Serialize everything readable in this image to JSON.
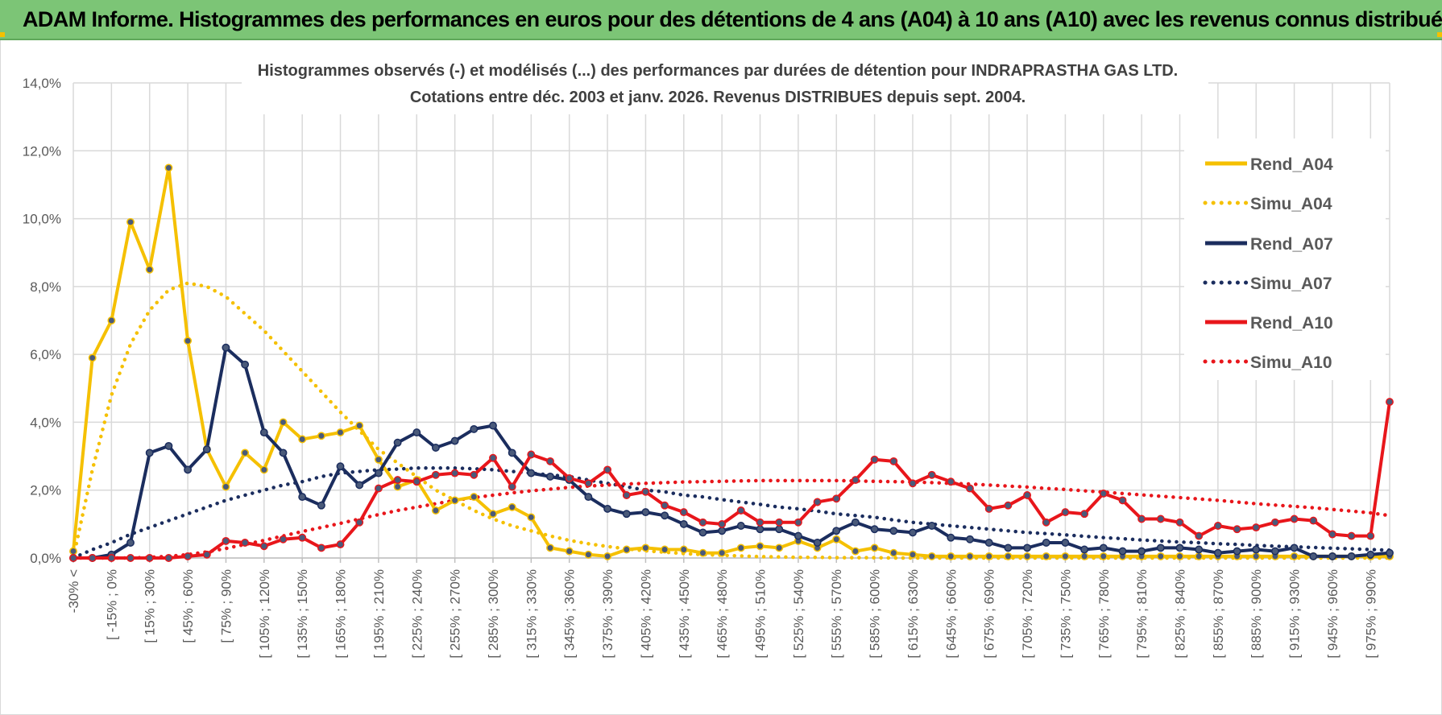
{
  "header": {
    "title": "ADAM Informe. Histogrammes des performances en euros pour des détentions de 4 ans (A04) à 10 ans (A10) avec les revenus connus distribués"
  },
  "colors": {
    "banner_bg": "#7cc576",
    "rend_a04": "#f5c000",
    "simu_a04": "#f5c000",
    "rend_a07": "#1b2d5e",
    "simu_a07": "#1b2d5e",
    "rend_a10": "#e8161b",
    "simu_a10": "#e8161b",
    "grid": "#d9d9d9"
  },
  "chart_data": {
    "type": "line",
    "title": "Histogrammes observés (-) et modélisés (...) des performances par durées de détention pour INDRAPRASTHA GAS LTD.",
    "subtitle": "Cotations entre déc. 2003 et janv. 2026.  Revenus DISTRIBUES depuis sept. 2004.",
    "xlabel": "",
    "ylabel": "",
    "ylim": [
      0,
      14
    ],
    "y_ticks": [
      "0,0%",
      "2,0%",
      "4,0%",
      "6,0%",
      "8,0%",
      "10,0%",
      "12,0%",
      "14,0%"
    ],
    "grid": true,
    "legend_position": "right",
    "x_tick_labels": [
      "-30% <",
      "[ -15% ; 0%",
      "[ 15% ; 30%",
      "[ 45% ; 60%",
      "[ 75% ; 90%",
      "[ 105% ; 120%",
      "[ 135% ; 150%",
      "[ 165% ; 180%",
      "[ 195% ; 210%",
      "[ 225% ; 240%",
      "[ 255% ; 270%",
      "[ 285% ; 300%",
      "[ 315% ; 330%",
      "[ 345% ; 360%",
      "[ 375% ; 390%",
      "[ 405% ; 420%",
      "[ 435% ; 450%",
      "[ 465% ; 480%",
      "[ 495% ; 510%",
      "[ 525% ; 540%",
      "[ 555% ; 570%",
      "[ 585% ; 600%",
      "[ 615% ; 630%",
      "[ 645% ; 660%",
      "[ 675% ; 690%",
      "[ 705% ; 720%",
      "[ 735% ; 750%",
      "[ 765% ; 780%",
      "[ 795% ; 810%",
      "[ 825% ; 840%",
      "[ 855% ; 870%",
      "[ 885% ; 900%",
      "[ 915% ; 930%",
      "[ 945% ; 960%",
      "[ 975% ; 990%"
    ],
    "n_points": 70,
    "series": [
      {
        "name": "Rend_A04",
        "style": "solid",
        "markers": true,
        "color_key": "rend_a04",
        "values": [
          0.2,
          5.9,
          7.0,
          9.9,
          8.5,
          11.5,
          6.4,
          3.2,
          2.1,
          3.1,
          2.6,
          4.0,
          3.5,
          3.6,
          3.7,
          3.9,
          2.9,
          2.1,
          2.3,
          1.4,
          1.7,
          1.8,
          1.3,
          1.5,
          1.2,
          0.3,
          0.2,
          0.1,
          0.05,
          0.25,
          0.3,
          0.25,
          0.25,
          0.15,
          0.15,
          0.3,
          0.35,
          0.3,
          0.5,
          0.3,
          0.55,
          0.2,
          0.3,
          0.15,
          0.1,
          0.05,
          0.05,
          0.05,
          0.05,
          0.05,
          0.05,
          0.05,
          0.05,
          0.05,
          0.05,
          0.05,
          0.05,
          0.05,
          0.05,
          0.05,
          0.05,
          0.05,
          0.05,
          0.05,
          0.05,
          0.05,
          0.05,
          0.05,
          0.05,
          0.05
        ]
      },
      {
        "name": "Simu_A04",
        "style": "dotted",
        "markers": false,
        "color_key": "simu_a04",
        "values": [
          0.0,
          2.6,
          4.8,
          6.3,
          7.3,
          7.9,
          8.1,
          8.0,
          7.7,
          7.2,
          6.7,
          6.1,
          5.5,
          4.9,
          4.3,
          3.75,
          3.2,
          2.8,
          2.4,
          2.0,
          1.7,
          1.4,
          1.15,
          0.95,
          0.8,
          0.65,
          0.52,
          0.42,
          0.34,
          0.27,
          0.21,
          0.17,
          0.13,
          0.1,
          0.08,
          0.06,
          0.04,
          0.03,
          0.02,
          0.02,
          0.01,
          0.01,
          0.01,
          0.0,
          0.0,
          0.0,
          0.0,
          0.0,
          0.0,
          0.0,
          0.0,
          0.0,
          0.0,
          0.0,
          0.0,
          0.0,
          0.0,
          0.0,
          0.0,
          0.0,
          0.0,
          0.0,
          0.0,
          0.0,
          0.0,
          0.0,
          0.0,
          0.0,
          0.0,
          0.0
        ]
      },
      {
        "name": "Rend_A07",
        "style": "solid",
        "markers": true,
        "color_key": "rend_a07",
        "values": [
          0.0,
          0.0,
          0.1,
          0.45,
          3.1,
          3.3,
          2.6,
          3.2,
          6.2,
          5.7,
          3.7,
          3.1,
          1.8,
          1.55,
          2.7,
          2.15,
          2.5,
          3.4,
          3.7,
          3.25,
          3.45,
          3.8,
          3.9,
          3.1,
          2.5,
          2.4,
          2.3,
          1.8,
          1.45,
          1.3,
          1.35,
          1.25,
          1.0,
          0.75,
          0.8,
          0.95,
          0.85,
          0.85,
          0.65,
          0.45,
          0.8,
          1.05,
          0.85,
          0.8,
          0.75,
          0.95,
          0.6,
          0.55,
          0.45,
          0.3,
          0.3,
          0.45,
          0.45,
          0.25,
          0.3,
          0.2,
          0.2,
          0.3,
          0.3,
          0.25,
          0.15,
          0.2,
          0.25,
          0.2,
          0.3,
          0.05,
          0.05,
          0.05,
          0.1,
          0.15
        ]
      },
      {
        "name": "Simu_A07",
        "style": "dotted",
        "markers": false,
        "color_key": "simu_a07",
        "values": [
          0.0,
          0.25,
          0.45,
          0.7,
          0.9,
          1.1,
          1.3,
          1.5,
          1.7,
          1.85,
          2.0,
          2.15,
          2.25,
          2.4,
          2.5,
          2.55,
          2.6,
          2.62,
          2.65,
          2.65,
          2.65,
          2.63,
          2.6,
          2.55,
          2.5,
          2.45,
          2.4,
          2.3,
          2.2,
          2.1,
          2.0,
          1.95,
          1.85,
          1.8,
          1.72,
          1.65,
          1.58,
          1.5,
          1.45,
          1.38,
          1.3,
          1.25,
          1.2,
          1.12,
          1.05,
          1.0,
          0.95,
          0.9,
          0.85,
          0.8,
          0.75,
          0.72,
          0.68,
          0.64,
          0.6,
          0.57,
          0.53,
          0.5,
          0.47,
          0.45,
          0.42,
          0.4,
          0.37,
          0.35,
          0.33,
          0.31,
          0.29,
          0.27,
          0.25,
          0.23
        ]
      },
      {
        "name": "Rend_A10",
        "style": "solid",
        "markers": true,
        "color_key": "rend_a10",
        "values": [
          0.0,
          0.0,
          0.0,
          0.0,
          0.0,
          0.0,
          0.05,
          0.1,
          0.5,
          0.45,
          0.35,
          0.55,
          0.6,
          0.3,
          0.4,
          1.05,
          2.05,
          2.3,
          2.25,
          2.45,
          2.5,
          2.45,
          2.95,
          2.1,
          3.05,
          2.85,
          2.35,
          2.2,
          2.6,
          1.85,
          1.95,
          1.55,
          1.35,
          1.05,
          1.0,
          1.4,
          1.05,
          1.05,
          1.05,
          1.65,
          1.75,
          2.3,
          2.9,
          2.85,
          2.2,
          2.45,
          2.25,
          2.05,
          1.45,
          1.55,
          1.85,
          1.05,
          1.35,
          1.3,
          1.9,
          1.7,
          1.15,
          1.15,
          1.05,
          0.65,
          0.95,
          0.85,
          0.9,
          1.05,
          1.15,
          1.1,
          0.7,
          0.65,
          0.65,
          4.6
        ]
      },
      {
        "name": "Simu_A10",
        "style": "dotted",
        "markers": false,
        "color_key": "simu_a10",
        "values": [
          0.0,
          0.0,
          0.0,
          0.0,
          0.02,
          0.05,
          0.1,
          0.18,
          0.28,
          0.4,
          0.52,
          0.65,
          0.78,
          0.9,
          1.02,
          1.15,
          1.28,
          1.4,
          1.5,
          1.6,
          1.7,
          1.78,
          1.85,
          1.92,
          1.98,
          2.03,
          2.08,
          2.12,
          2.15,
          2.18,
          2.2,
          2.22,
          2.24,
          2.25,
          2.26,
          2.27,
          2.28,
          2.28,
          2.28,
          2.28,
          2.28,
          2.27,
          2.26,
          2.25,
          2.24,
          2.22,
          2.2,
          2.18,
          2.15,
          2.12,
          2.09,
          2.05,
          2.02,
          1.98,
          1.94,
          1.9,
          1.86,
          1.82,
          1.78,
          1.74,
          1.7,
          1.65,
          1.6,
          1.56,
          1.52,
          1.48,
          1.43,
          1.38,
          1.33,
          1.25
        ]
      }
    ]
  }
}
